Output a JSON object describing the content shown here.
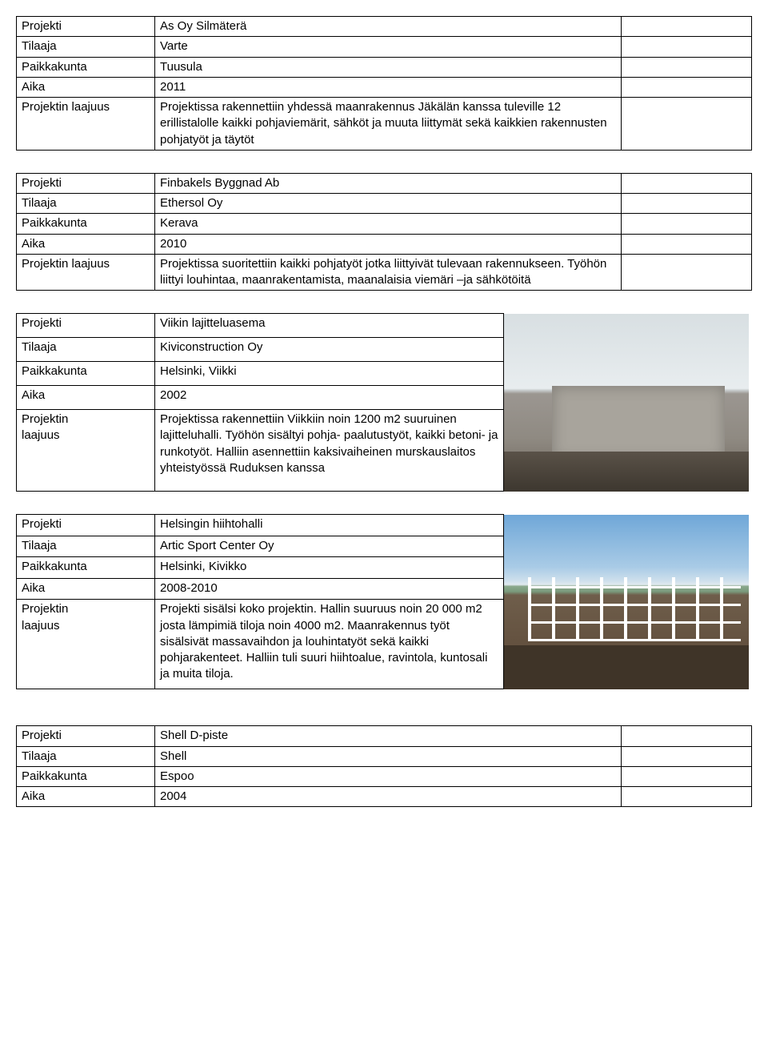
{
  "labels": {
    "projekti": "Projekti",
    "tilaaja": "Tilaaja",
    "paikkakunta": "Paikkakunta",
    "aika": "Aika",
    "projektin_laajuus": "Projektin laajuus",
    "projektin": "Projektin",
    "laajuus": "laajuus"
  },
  "t1": {
    "projekti": "As Oy Silmäterä",
    "tilaaja": "Varte",
    "paikkakunta": "Tuusula",
    "aika": "2011",
    "laajuus": "Projektissa rakennettiin yhdessä maanrakennus Jäkälän kanssa tuleville 12 erillistalolle kaikki pohjaviemärit, sähköt ja muuta liittymät sekä kaikkien rakennusten pohjatyöt ja täytöt"
  },
  "t2": {
    "projekti": "Finbakels Byggnad Ab",
    "tilaaja": "Ethersol Oy",
    "paikkakunta": "Kerava",
    "aika": "2010",
    "laajuus": "Projektissa suoritettiin kaikki pohjatyöt jotka liittyivät tulevaan rakennukseen. Työhön liittyi louhintaa, maanrakentamista, maanalaisia viemäri –ja sähkötöitä"
  },
  "t3": {
    "projekti": "Viikin lajitteluasema",
    "tilaaja": "Kiviconstruction Oy",
    "paikkakunta": "Helsinki, Viikki",
    "aika": "2002",
    "laajuus": "Projektissa rakennettiin Viikkiin noin 1200 m2 suuruinen lajitteluhalli. Työhön sisältyi pohja- paalutustyöt, kaikki betoni- ja runkotyöt. Halliin asennettiin kaksivaiheinen murskauslaitos yhteistyössä Ruduksen kanssa"
  },
  "t4": {
    "projekti": "Helsingin hiihtohalli",
    "tilaaja": "Artic Sport Center Oy",
    "paikkakunta": "Helsinki, Kivikko",
    "aika": "2008-2010",
    "laajuus": "Projekti sisälsi koko projektin. Hallin suuruus noin 20 000 m2 josta lämpimiä tiloja noin 4000 m2. Maanrakennus työt sisälsivät massavaihdon ja louhintatyöt sekä kaikki pohjarakenteet. Halliin tuli suuri hiihtoalue, ravintola, kuntosali ja muita tiloja."
  },
  "t5": {
    "projekti": "Shell D-piste",
    "tilaaja": "Shell",
    "paikkakunta": "Espoo",
    "aika": "2004"
  }
}
